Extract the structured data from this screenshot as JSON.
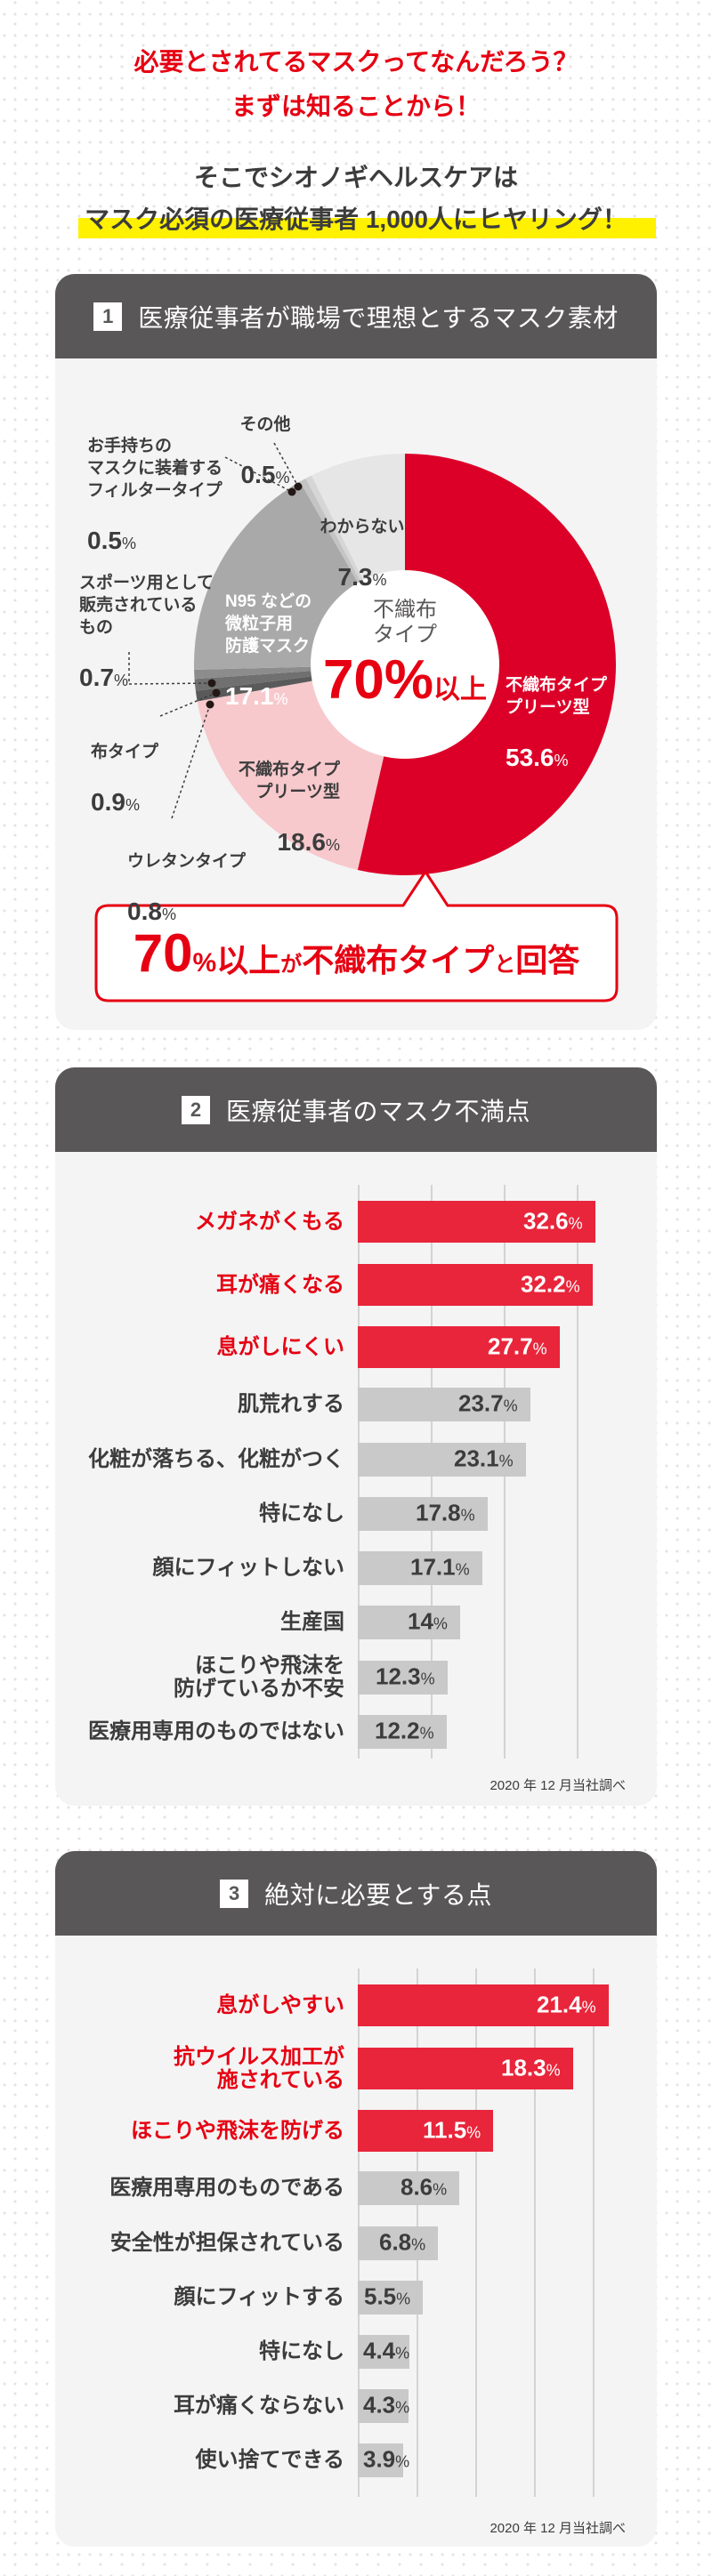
{
  "intro": {
    "headline_line1": "必要とされてるマスクってなんだろう？",
    "headline_line2": "まずは知ることから！",
    "sub_line1": "そこでシオノギヘルスケアは",
    "sub_line2": "マスク必須の医療従事者 1,000人にヒヤリング！"
  },
  "colors": {
    "accent_red": "#e60012",
    "pie_red": "#dc0028",
    "bar_red": "#e8253a",
    "bar_gray": "#c9c9c9",
    "header_bg": "#595757",
    "card_bg": "#f4f4f4",
    "highlight_yellow": "#fff100"
  },
  "sections": [
    {
      "number": "1",
      "title": "医療従事者が職場で理想とするマスク素材"
    },
    {
      "number": "2",
      "title": "医療従事者のマスク不満点",
      "footnote": "2020 年 12 月当社調べ"
    },
    {
      "number": "3",
      "title": "絶対に必要とする点",
      "footnote": "2020 年 12 月当社調べ"
    }
  ],
  "pie_center": {
    "line1": "不織布",
    "line2": "タイプ",
    "big": "70%",
    "suffix": "以上"
  },
  "callout": {
    "num": "70",
    "pct": "%",
    "p1": "以上",
    "p2": "が",
    "p3": "不織布タイプ",
    "p4": "と",
    "p5": "回答"
  },
  "chart_data": [
    {
      "type": "pie",
      "title": "医療従事者が職場で理想とするマスク素材",
      "unit": "%",
      "center_text": "不織布タイプ 70%以上",
      "annotation": "70%以上が不織布タイプと回答",
      "slices": [
        {
          "label": "不織布タイプ\nプリーツ型",
          "value": 53.6,
          "display": "53.6",
          "color": "#dc0028"
        },
        {
          "label": "不織布タイプ\nプリーツ型",
          "value": 18.6,
          "display": "18.6",
          "color": "#f7c9cd"
        },
        {
          "label": "ウレタンタイプ",
          "value": 0.8,
          "display": "0.8",
          "color": "#5a5a5a"
        },
        {
          "label": "布タイプ",
          "value": 0.9,
          "display": "0.9",
          "color": "#707070"
        },
        {
          "label": "スポーツ用として\n販売されている\nもの",
          "value": 0.7,
          "display": "0.7",
          "color": "#8c8c8c"
        },
        {
          "label": "N95 などの\n微粒子用\n防護マスク",
          "value": 17.1,
          "display": "17.1",
          "color": "#a9a9a9"
        },
        {
          "label": "お手持ちの\nマスクに装着する\nフィルタータイプ",
          "value": 0.5,
          "display": "0.5",
          "color": "#c4c4c4"
        },
        {
          "label": "その他",
          "value": 0.5,
          "display": "0.5",
          "color": "#d6d6d6"
        },
        {
          "label": "わからない",
          "value": 7.3,
          "display": "7.3",
          "color": "#e6e6e6"
        }
      ]
    },
    {
      "type": "bar",
      "orientation": "horizontal",
      "title": "医療従事者のマスク不満点",
      "unit": "%",
      "categories": [
        "メガネがくもる",
        "耳が痛くなる",
        "息がしにくい",
        "肌荒れする",
        "化粧が落ちる、化粧がつく",
        "特になし",
        "顔にフィットしない",
        "生産国",
        "ほこりや飛沫を\n防げているか不安",
        "医療用専用のものではない"
      ],
      "values": [
        32.6,
        32.2,
        27.7,
        23.7,
        23.1,
        17.8,
        17.1,
        14,
        12.3,
        12.2
      ],
      "labels": [
        "32.6",
        "32.2",
        "27.7",
        "23.7",
        "23.1",
        "17.8",
        "17.1",
        "14",
        "12.3",
        "12.2"
      ],
      "highlight": [
        true,
        true,
        true,
        false,
        false,
        false,
        false,
        false,
        false,
        false
      ],
      "grid": [
        0,
        10,
        20,
        30
      ],
      "xlim": [
        0,
        35
      ],
      "source": "2020 年 12 月当社調べ"
    },
    {
      "type": "bar",
      "orientation": "horizontal",
      "title": "絶対に必要とする点",
      "unit": "%",
      "categories": [
        "息がしやすい",
        "抗ウイルス加工が\n施されている",
        "ほこりや飛沫を防げる",
        "医療用専用のものである",
        "安全性が担保されている",
        "顔にフィットする",
        "特になし",
        "耳が痛くならない",
        "使い捨てできる"
      ],
      "values": [
        21.4,
        18.3,
        11.5,
        8.6,
        6.8,
        5.5,
        4.4,
        4.3,
        3.9
      ],
      "labels": [
        "21.4",
        "18.3",
        "11.5",
        "8.6",
        "6.8",
        "5.5",
        "4.4",
        "4.3",
        "3.9"
      ],
      "highlight": [
        true,
        true,
        true,
        false,
        false,
        false,
        false,
        false,
        false
      ],
      "grid": [
        0,
        5,
        10,
        15,
        20
      ],
      "xlim": [
        0,
        22
      ],
      "source": "2020 年 12 月当社調べ"
    }
  ]
}
